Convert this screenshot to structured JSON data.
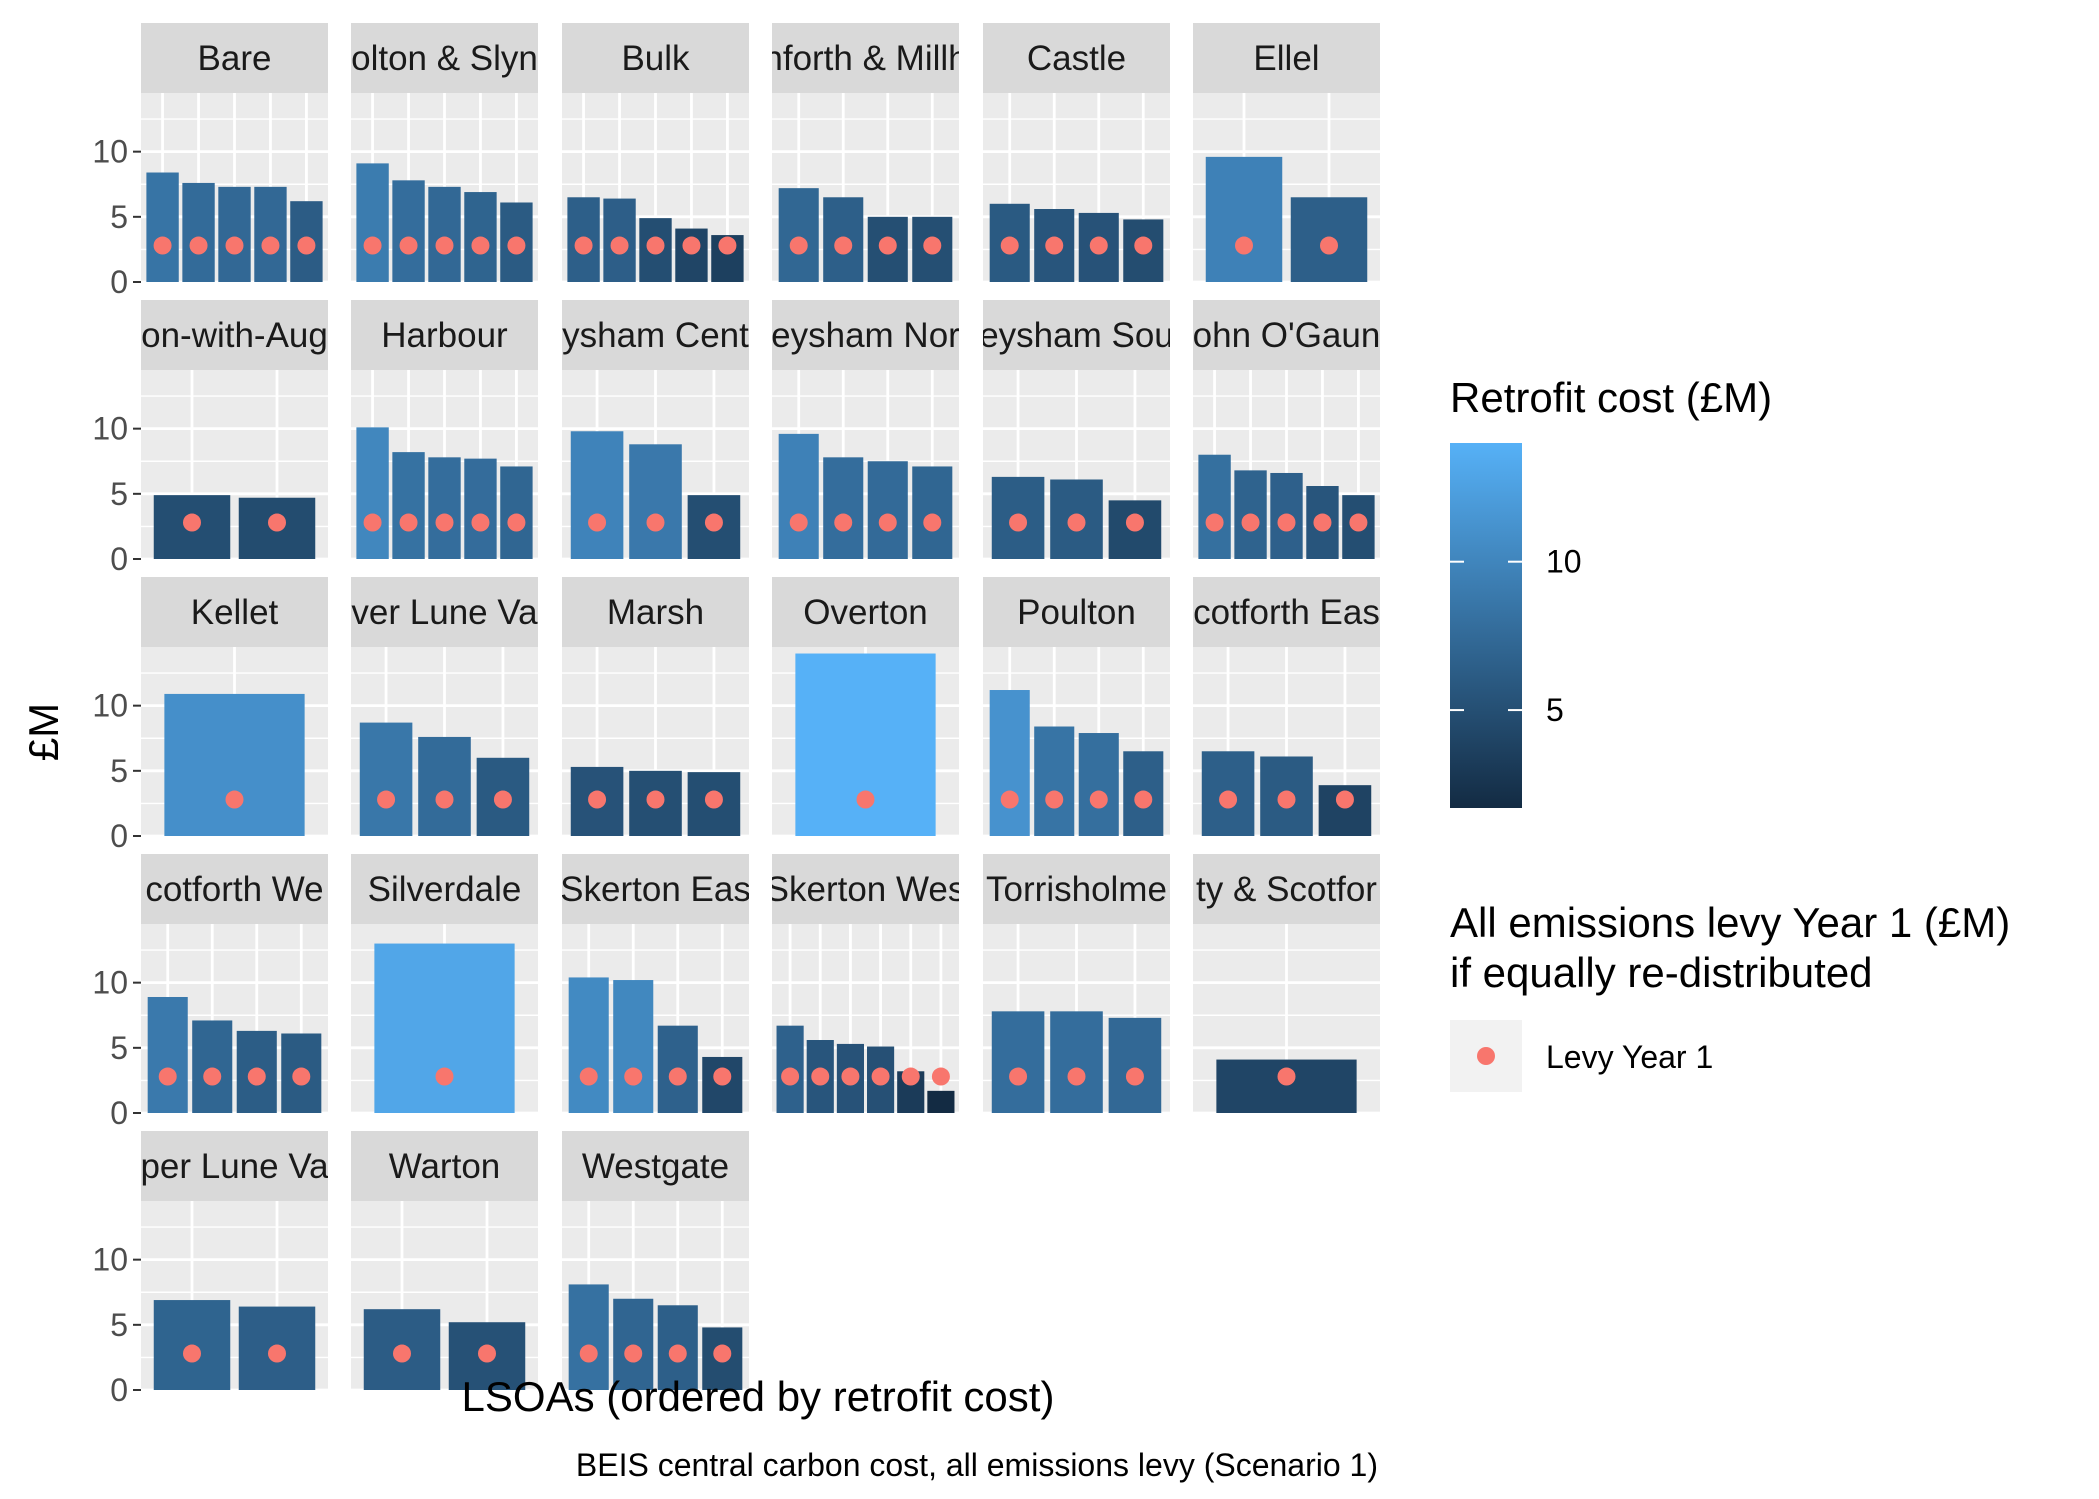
{
  "chart_data": {
    "type": "bar",
    "facet_layout": {
      "columns": 6,
      "rows": 5
    },
    "y_axis": {
      "label": "£M",
      "ticks": [
        0,
        5,
        10
      ],
      "ylim": [
        0,
        14.5
      ]
    },
    "x_axis": {
      "label": "LSOAs (ordered by retrofit cost)"
    },
    "caption": "BEIS central carbon cost, all emissions levy (Scenario 1)",
    "fill_scale": {
      "title": "Retrofit cost (£M)",
      "low": 1.7,
      "high": 14,
      "low_color": "#132B43",
      "high_color": "#56B1F7",
      "ticks": [
        5,
        10
      ]
    },
    "point_legend": {
      "title_lines": [
        "All emissions levy Year 1 (£M)",
        "if equally re-distributed"
      ],
      "label": "Levy Year 1",
      "color": "#F8766D"
    },
    "facets": [
      {
        "display": "Bare",
        "name": "Bare",
        "values": [
          8.4,
          7.6,
          7.3,
          7.3,
          6.2
        ],
        "levy": 2.8
      },
      {
        "display": "olton & Slyn",
        "name": "Bolton & Slyne",
        "values": [
          9.1,
          7.8,
          7.3,
          6.9,
          6.1
        ],
        "levy": 2.8
      },
      {
        "display": "Bulk",
        "name": "Bulk",
        "values": [
          6.5,
          6.4,
          4.9,
          4.1,
          3.6
        ],
        "levy": 2.8
      },
      {
        "display": "nforth & Millh",
        "name": "Carnforth & Millhead",
        "values": [
          7.2,
          6.5,
          5.0,
          5.0
        ],
        "levy": 2.8
      },
      {
        "display": "Castle",
        "name": "Castle",
        "values": [
          6.0,
          5.6,
          5.3,
          4.8
        ],
        "levy": 2.8
      },
      {
        "display": "Ellel",
        "name": "Ellel",
        "values": [
          9.6,
          6.5
        ],
        "levy": 2.8
      },
      {
        "display": "on-with-Aug",
        "name": "Halton-with-Aughton",
        "values": [
          4.9,
          4.7
        ],
        "levy": 2.8
      },
      {
        "display": "Harbour",
        "name": "Harbour",
        "values": [
          10.1,
          8.2,
          7.8,
          7.7,
          7.1
        ],
        "levy": 2.8
      },
      {
        "display": "ysham Cent",
        "name": "Heysham Central",
        "values": [
          9.8,
          8.8,
          4.9
        ],
        "levy": 2.8
      },
      {
        "display": "eysham Nor",
        "name": "Heysham North",
        "values": [
          9.6,
          7.8,
          7.5,
          7.1
        ],
        "levy": 2.8
      },
      {
        "display": "eysham Sou",
        "name": "Heysham South",
        "values": [
          6.3,
          6.1,
          4.5
        ],
        "levy": 2.8
      },
      {
        "display": "ohn O'Gaun",
        "name": "John O'Gaunt",
        "values": [
          8.0,
          6.8,
          6.6,
          5.6,
          4.9
        ],
        "levy": 2.8
      },
      {
        "display": "Kellet",
        "name": "Kellet",
        "values": [
          10.9
        ],
        "levy": 2.8
      },
      {
        "display": "ver Lune Va",
        "name": "Lower Lune Valley",
        "values": [
          8.7,
          7.6,
          6.0
        ],
        "levy": 2.8
      },
      {
        "display": "Marsh",
        "name": "Marsh",
        "values": [
          5.3,
          5.0,
          4.9
        ],
        "levy": 2.8
      },
      {
        "display": "Overton",
        "name": "Overton",
        "values": [
          14.0
        ],
        "levy": 2.8
      },
      {
        "display": "Poulton",
        "name": "Poulton",
        "values": [
          11.2,
          8.4,
          7.9,
          6.5
        ],
        "levy": 2.8
      },
      {
        "display": "cotforth Eas",
        "name": "Scotforth East",
        "values": [
          6.5,
          6.1,
          3.9
        ],
        "levy": 2.8
      },
      {
        "display": "cotforth We",
        "name": "Scotforth West",
        "values": [
          8.9,
          7.1,
          6.3,
          6.1
        ],
        "levy": 2.8
      },
      {
        "display": "Silverdale",
        "name": "Silverdale",
        "values": [
          13.0
        ],
        "levy": 2.8
      },
      {
        "display": "Skerton Eas",
        "name": "Skerton East",
        "values": [
          10.4,
          10.2,
          6.7,
          4.3
        ],
        "levy": 2.8
      },
      {
        "display": "Skerton Wes",
        "name": "Skerton West",
        "values": [
          6.7,
          5.6,
          5.3,
          5.1,
          3.2,
          1.7
        ],
        "levy": 2.8
      },
      {
        "display": "Torrisholme",
        "name": "Torrisholme",
        "values": [
          7.8,
          7.8,
          7.3
        ],
        "levy": 2.8
      },
      {
        "display": "ty & Scotfor",
        "name": "University & Scotforth Rural",
        "values": [
          4.1
        ],
        "levy": 2.8
      },
      {
        "display": "per Lune Va",
        "name": "Upper Lune Valley",
        "values": [
          6.9,
          6.4
        ],
        "levy": 2.8
      },
      {
        "display": "Warton",
        "name": "Warton",
        "values": [
          6.2,
          5.2
        ],
        "levy": 2.8
      },
      {
        "display": "Westgate",
        "name": "Westgate",
        "values": [
          8.1,
          7.0,
          6.5,
          4.8
        ],
        "levy": 2.8
      }
    ]
  }
}
